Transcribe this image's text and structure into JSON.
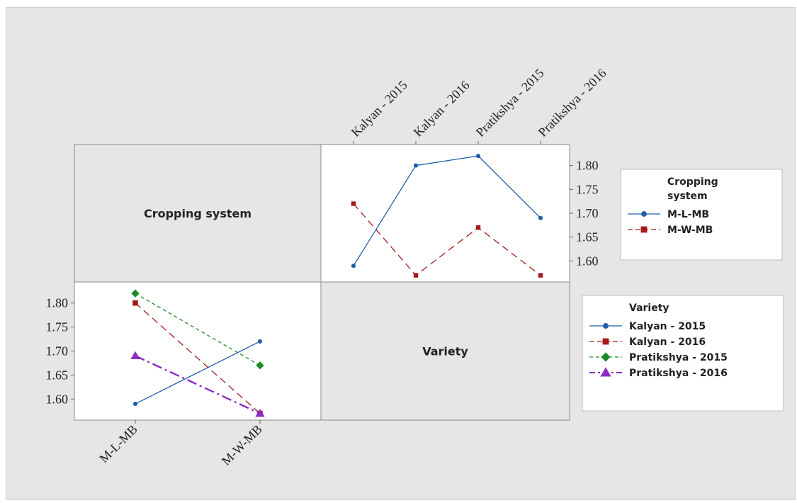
{
  "chart_data": {
    "type": "line",
    "chart_kind": "interaction plot matrix",
    "factors": [
      "Cropping system",
      "Variety"
    ],
    "panel_labels": {
      "cropping_system": "Cropping system",
      "variety": "Variety"
    },
    "panels": [
      {
        "id": "by-variety",
        "x_factor": "Variety",
        "trace_factor": "Cropping system",
        "categories": [
          "Kalyan - 2015",
          "Kalyan - 2016",
          "Pratikshya - 2015",
          "Pratikshya - 2016"
        ],
        "yticks": [
          "1.80",
          "1.75",
          "1.70",
          "1.65",
          "1.60"
        ],
        "ylim": [
          1.565,
          1.835
        ],
        "series": [
          {
            "name": "M-L-MB",
            "values": [
              1.59,
              1.8,
              1.82,
              1.69
            ],
            "color": "#1f5fa8",
            "marker": "circle",
            "dash": "solid"
          },
          {
            "name": "M-W-MB",
            "values": [
              1.72,
              1.57,
              1.67,
              1.57
            ],
            "color": "#a31a1a",
            "marker": "square",
            "dash": "dashed"
          }
        ]
      },
      {
        "id": "by-cropping",
        "x_factor": "Cropping system",
        "trace_factor": "Variety",
        "categories": [
          "M-L-MB",
          "M-W-MB"
        ],
        "yticks": [
          "1.80",
          "1.75",
          "1.70",
          "1.65",
          "1.60"
        ],
        "ylim": [
          1.565,
          1.835
        ],
        "series": [
          {
            "name": "Kalyan - 2015",
            "values": [
              1.59,
              1.72
            ],
            "color": "#1f5fa8",
            "marker": "circle",
            "dash": "solid"
          },
          {
            "name": "Kalyan - 2016",
            "values": [
              1.8,
              1.57
            ],
            "color": "#a31a1a",
            "marker": "square",
            "dash": "dashed"
          },
          {
            "name": "Pratikshya - 2015",
            "values": [
              1.82,
              1.67
            ],
            "color": "#1f8a2a",
            "marker": "diamond",
            "dash": "short-dash"
          },
          {
            "name": "Pratikshya - 2016",
            "values": [
              1.69,
              1.57
            ],
            "color": "#8e2bc4",
            "marker": "triangle",
            "dash": "dash-dot"
          }
        ]
      }
    ],
    "legends": [
      {
        "title_lines": [
          "Cropping",
          "system"
        ],
        "entries": [
          "M-L-MB",
          "M-W-MB"
        ]
      },
      {
        "title_lines": [
          "Variety"
        ],
        "entries": [
          "Kalyan - 2015",
          "Kalyan - 2016",
          "Pratikshya - 2015",
          "Pratikshya - 2016"
        ]
      }
    ]
  }
}
